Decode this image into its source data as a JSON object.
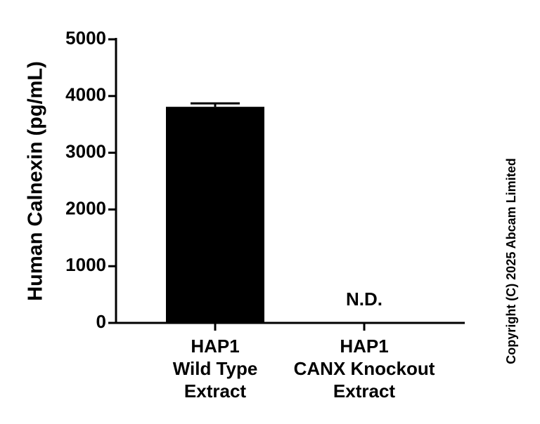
{
  "chart_data": {
    "type": "bar",
    "y_label": "Human Calnexin (pg/mL)",
    "categories": [
      [
        "HAP1",
        "Wild Type",
        "Extract"
      ],
      [
        "HAP1",
        "CANX Knockout",
        "Extract"
      ]
    ],
    "values": [
      3810,
      null
    ],
    "errors": [
      60,
      null
    ],
    "value_labels": [
      null,
      "N.D."
    ],
    "color": "#000000",
    "ylim": [
      0,
      5000
    ],
    "yticks": [
      0,
      1000,
      2000,
      3000,
      4000,
      5000
    ],
    "copyright": "Copyright (C) 2025 Abcam Limited"
  }
}
